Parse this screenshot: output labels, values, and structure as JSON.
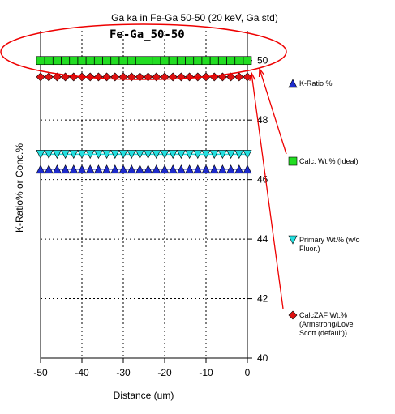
{
  "chart_data": {
    "type": "scatter",
    "title": "Ga ka  in Fe-Ga 50-50 (20 keV, Ga std)",
    "inset_label": "Fe-Ga_50-50",
    "xlabel": "Distance (um)",
    "ylabel": "K-Ratio% or Conc.%",
    "xlim": [
      -50,
      0
    ],
    "ylim": [
      40,
      51
    ],
    "x_ticks": [
      "-50",
      "-40",
      "-30",
      "-20",
      "-10",
      "0"
    ],
    "y_ticks": [
      "40",
      "42",
      "44",
      "46",
      "48",
      "50"
    ],
    "grid": "dashed",
    "legend_position": "right",
    "x": [
      -50,
      -48,
      -46,
      -44,
      -42,
      -40,
      -38,
      -36,
      -34,
      -32,
      -30,
      -28,
      -26,
      -24,
      -22,
      -20,
      -18,
      -16,
      -14,
      -12,
      -10,
      -8,
      -6,
      -4,
      -2,
      0
    ],
    "series": [
      {
        "name": "K-Ratio %",
        "marker": "triangle-up",
        "color": "#1e2ccc",
        "value": 46.35
      },
      {
        "name": "Calc. Wt.% (Ideal)",
        "marker": "square",
        "color": "#22dd22",
        "value": 50
      },
      {
        "name": "Primary Wt.% (w/o Fluor.)",
        "marker": "triangle-down",
        "color": "#22e0e0",
        "value": 46.85
      },
      {
        "name": "CalcZAF Wt.% (Armstrong/Love Scott (default))",
        "marker": "diamond",
        "color": "#dd1111",
        "value": 49.45
      }
    ],
    "annotation_color": "#ee0000"
  },
  "legend_lines": [
    [
      "K-Ratio %"
    ],
    [
      "Calc. Wt.% (Ideal)"
    ],
    [
      "Primary Wt.% (w/o",
      "Fluor.)"
    ],
    [
      "CalcZAF Wt.%",
      "(Armstrong/Love",
      "Scott (default))"
    ]
  ]
}
